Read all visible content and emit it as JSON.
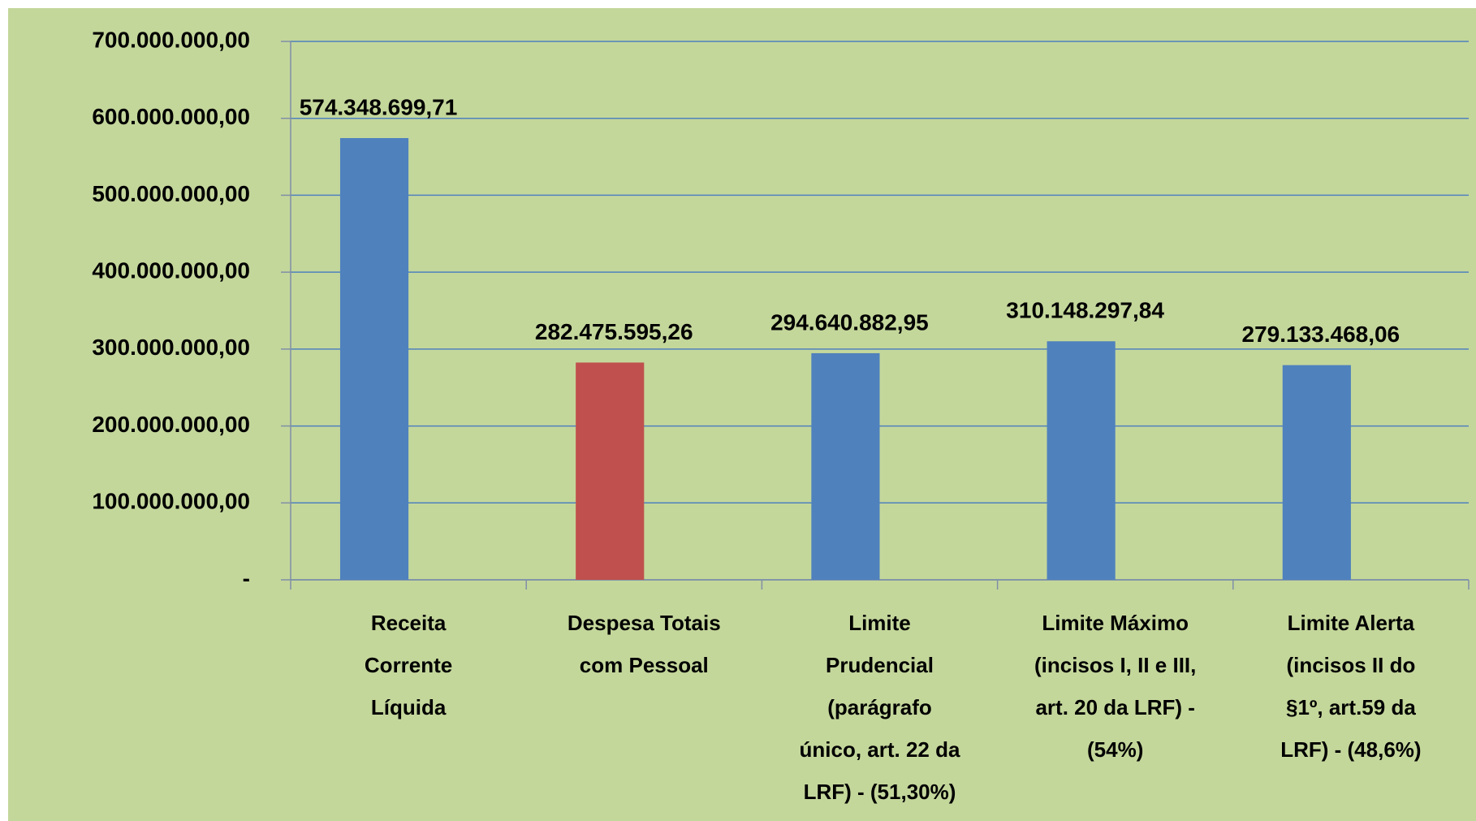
{
  "chart_data": {
    "type": "bar",
    "categories": [
      "Receita\nCorrente\nLíquida",
      "Despesa Totais\ncom  Pessoal",
      "Limite\nPrudencial\n(parágrafo\núnico, art. 22 da\nLRF) - (51,30%)",
      "Limite Máximo\n(incisos I, II e III,\nart. 20 da LRF) -\n(54%)",
      "Limite Alerta\n(incisos II do\n§1º, art.59 da\nLRF) - (48,6%)"
    ],
    "values": [
      574348699.71,
      282475595.26,
      294640882.95,
      310148297.84,
      279133468.06
    ],
    "value_labels": [
      "574.348.699,71",
      "282.475.595,26",
      "294.640.882,95",
      "310.148.297,84",
      "279.133.468,06"
    ],
    "colors": [
      "#4f81bd",
      "#c0504d",
      "#4f81bd",
      "#4f81bd",
      "#4f81bd"
    ],
    "ylim": [
      0,
      700000000
    ],
    "yticks": [
      {
        "value": 0,
        "label": "-"
      },
      {
        "value": 100000000,
        "label": "100.000.000,00"
      },
      {
        "value": 200000000,
        "label": "200.000.000,00"
      },
      {
        "value": 300000000,
        "label": "300.000.000,00"
      },
      {
        "value": 400000000,
        "label": "400.000.000,00"
      },
      {
        "value": 500000000,
        "label": "500.000.000,00"
      },
      {
        "value": 600000000,
        "label": "600.000.000,00"
      },
      {
        "value": 700000000,
        "label": "700.000.000,00"
      }
    ],
    "grid": true
  }
}
